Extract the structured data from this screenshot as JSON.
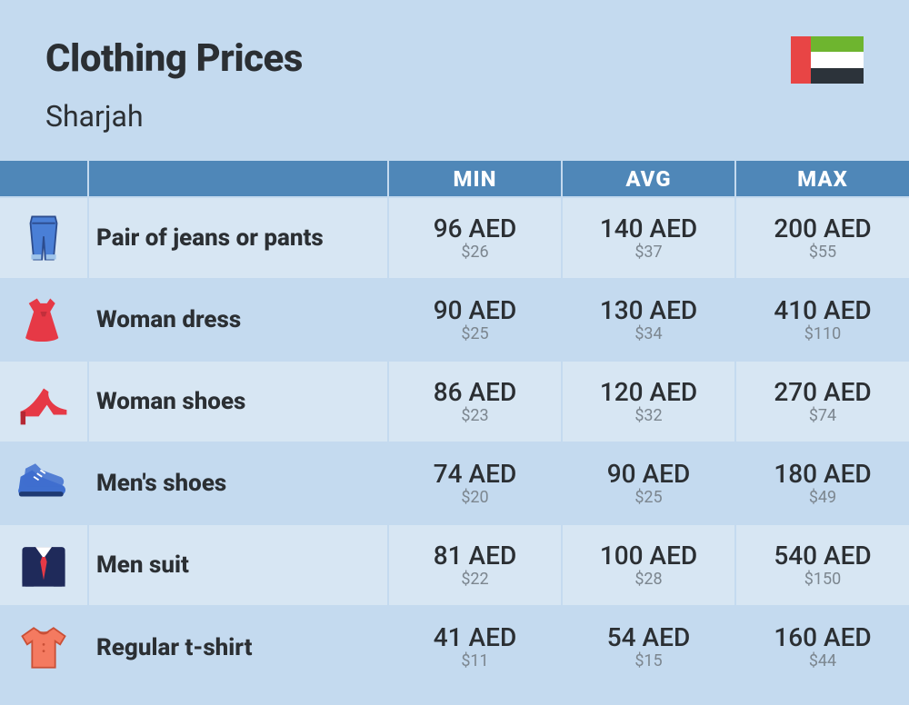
{
  "header": {
    "title": "Clothing Prices",
    "subtitle": "Sharjah",
    "flag": {
      "red": "#e84545",
      "green": "#6eb52f",
      "white": "#ffffff",
      "black": "#2c333a"
    }
  },
  "table": {
    "columns": [
      "MIN",
      "AVG",
      "MAX"
    ],
    "currency_primary": "AED",
    "currency_secondary_prefix": "$",
    "header_bg": "#4f87b8",
    "header_fg": "#ffffff",
    "row_bg_odd": "#d7e6f3",
    "row_bg_even": "#c4daef",
    "border_color": "#c4daef",
    "aed_color": "#2b2f33",
    "usd_color": "#7c868f",
    "rows": [
      {
        "icon": "jeans",
        "label": "Pair of jeans or pants",
        "min_aed": "96 AED",
        "min_usd": "$26",
        "avg_aed": "140 AED",
        "avg_usd": "$37",
        "max_aed": "200 AED",
        "max_usd": "$55"
      },
      {
        "icon": "dress",
        "label": "Woman dress",
        "min_aed": "90 AED",
        "min_usd": "$25",
        "avg_aed": "130 AED",
        "avg_usd": "$34",
        "max_aed": "410 AED",
        "max_usd": "$110"
      },
      {
        "icon": "heel",
        "label": "Woman shoes",
        "min_aed": "86 AED",
        "min_usd": "$23",
        "avg_aed": "120 AED",
        "avg_usd": "$32",
        "max_aed": "270 AED",
        "max_usd": "$74"
      },
      {
        "icon": "sneaker",
        "label": "Men's shoes",
        "min_aed": "74 AED",
        "min_usd": "$20",
        "avg_aed": "90 AED",
        "avg_usd": "$25",
        "max_aed": "180 AED",
        "max_usd": "$49"
      },
      {
        "icon": "suit",
        "label": "Men suit",
        "min_aed": "81 AED",
        "min_usd": "$22",
        "avg_aed": "100 AED",
        "avg_usd": "$28",
        "max_aed": "540 AED",
        "max_usd": "$150"
      },
      {
        "icon": "tshirt",
        "label": "Regular t-shirt",
        "min_aed": "41 AED",
        "min_usd": "$11",
        "avg_aed": "54 AED",
        "avg_usd": "$15",
        "max_aed": "160 AED",
        "max_usd": "$44"
      }
    ]
  },
  "icons": {
    "jeans_fill": "#4a7fd6",
    "jeans_stroke": "#2c4c8e",
    "jeans_cuff": "#9fc4ea",
    "dress_fill": "#e63946",
    "heel_fill": "#e63946",
    "sneaker_fill": "#3f6fcf",
    "sneaker_sole": "#1f3a73",
    "sneaker_lace": "#ffffff",
    "suit_fill": "#1f2a5a",
    "suit_shirt": "#ffffff",
    "suit_tie": "#e63946",
    "tshirt_fill": "#f47a60",
    "tshirt_stroke": "#c94f36"
  }
}
